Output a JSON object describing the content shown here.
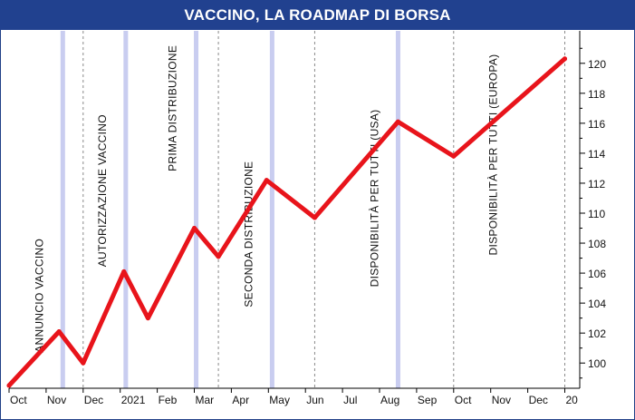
{
  "title": "VACCINO, LA ROADMAP DI BORSA",
  "chart_data": {
    "type": "line",
    "title": "VACCINO, LA ROADMAP DI BORSA",
    "x_tick_labels": [
      "Oct",
      "Nov",
      "Dec",
      "2021",
      "Feb",
      "Mar",
      "Apr",
      "May",
      "Jun",
      "Jul",
      "Aug",
      "Sep",
      "Oct",
      "Nov",
      "Dec",
      "20"
    ],
    "x_tick_months": [
      0,
      1,
      2,
      3,
      4,
      5,
      6,
      7,
      8,
      9,
      10,
      11,
      12,
      13,
      14,
      15
    ],
    "ylim": [
      98.5,
      121.5
    ],
    "y_ticks": [
      100,
      102,
      104,
      106,
      108,
      110,
      112,
      114,
      116,
      118,
      120
    ],
    "y_axis_position": "right",
    "grid": false,
    "series": [
      {
        "color": "#e8141b",
        "points": [
          {
            "x": 0.0,
            "y": 98.5
          },
          {
            "x": 1.35,
            "y": 102.1
          },
          {
            "x": 2.0,
            "y": 100.0
          },
          {
            "x": 3.1,
            "y": 106.1
          },
          {
            "x": 3.75,
            "y": 103.0
          },
          {
            "x": 5.0,
            "y": 109.0
          },
          {
            "x": 5.65,
            "y": 107.1
          },
          {
            "x": 6.95,
            "y": 112.2
          },
          {
            "x": 8.25,
            "y": 109.7
          },
          {
            "x": 10.5,
            "y": 116.1
          },
          {
            "x": 12.0,
            "y": 113.8
          },
          {
            "x": 15.0,
            "y": 120.3
          }
        ]
      }
    ],
    "events": [
      {
        "label": "ANNUNCIO VACCINO",
        "x": 1.45,
        "label_y": 104.5,
        "color": "#c9cdf0"
      },
      {
        "label": "AUTORIZZAZIONE VACCINO",
        "x": 3.15,
        "label_y": 111.5,
        "color": "#c9cdf0"
      },
      {
        "label": "PRIMA DISTRIBUZIONE",
        "x": 5.05,
        "label_y": 117.0,
        "color": "#c9cdf0"
      },
      {
        "label": "SECONDA DISTRIBUZIONE",
        "x": 7.1,
        "label_y": 108.6,
        "color": "#c9cdf0"
      },
      {
        "label": "DISPONIBILITÀ PER TUTTI (USA)",
        "x": 10.5,
        "label_y": 111.0,
        "color": "#c9cdf0"
      },
      {
        "label": "DISPONIBILITÀ PER TUTTI (EUROPA)",
        "x": 13.7,
        "label_y": 113.9,
        "color": "#ffffff"
      }
    ],
    "dashed_month_lines": [
      2,
      5.65,
      8.25,
      12,
      15
    ]
  }
}
